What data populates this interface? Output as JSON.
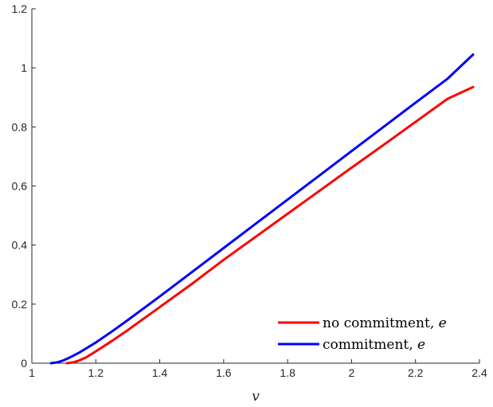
{
  "chart_data": {
    "type": "line",
    "title": "",
    "xlabel": "v",
    "ylabel": "",
    "xlim": [
      1,
      2.4
    ],
    "ylim": [
      0,
      1.2
    ],
    "xticks": [
      1,
      1.2,
      1.4,
      1.6,
      1.8,
      2,
      2.2,
      2.4
    ],
    "xtick_labels": [
      "1",
      "1.2",
      "1.4",
      "1.6",
      "1.8",
      "2",
      "2.2",
      "2.4"
    ],
    "yticks": [
      0,
      0.2,
      0.4,
      0.6,
      0.8,
      1,
      1.2
    ],
    "ytick_labels": [
      "0",
      "0.2",
      "0.4",
      "0.6",
      "0.8",
      "1",
      "1.2"
    ],
    "grid": false,
    "legend_position": "bottom-right",
    "series": [
      {
        "name": "no commitment, e",
        "name_text": "no commitment, ",
        "name_math": "e",
        "color": "#ff0000",
        "x": [
          1.11,
          1.13,
          1.15,
          1.17,
          1.2,
          1.25,
          1.3,
          1.4,
          1.5,
          1.6,
          1.7,
          1.8,
          1.9,
          2.0,
          2.1,
          2.2,
          2.3,
          2.38
        ],
        "y": [
          0.0,
          0.003,
          0.01,
          0.02,
          0.04,
          0.075,
          0.112,
          0.19,
          0.268,
          0.35,
          0.428,
          0.506,
          0.584,
          0.662,
          0.739,
          0.817,
          0.895,
          0.935
        ]
      },
      {
        "name": "commitment, e",
        "name_text": "commitment, ",
        "name_math": "e",
        "color": "#0000ff",
        "x": [
          1.06,
          1.08,
          1.1,
          1.12,
          1.15,
          1.2,
          1.25,
          1.3,
          1.4,
          1.5,
          1.6,
          1.7,
          1.8,
          1.9,
          2.0,
          2.1,
          2.2,
          2.3,
          2.38
        ],
        "y": [
          0.0,
          0.003,
          0.01,
          0.02,
          0.037,
          0.07,
          0.107,
          0.146,
          0.226,
          0.308,
          0.39,
          0.472,
          0.554,
          0.636,
          0.718,
          0.8,
          0.882,
          0.963,
          1.045
        ]
      }
    ]
  }
}
